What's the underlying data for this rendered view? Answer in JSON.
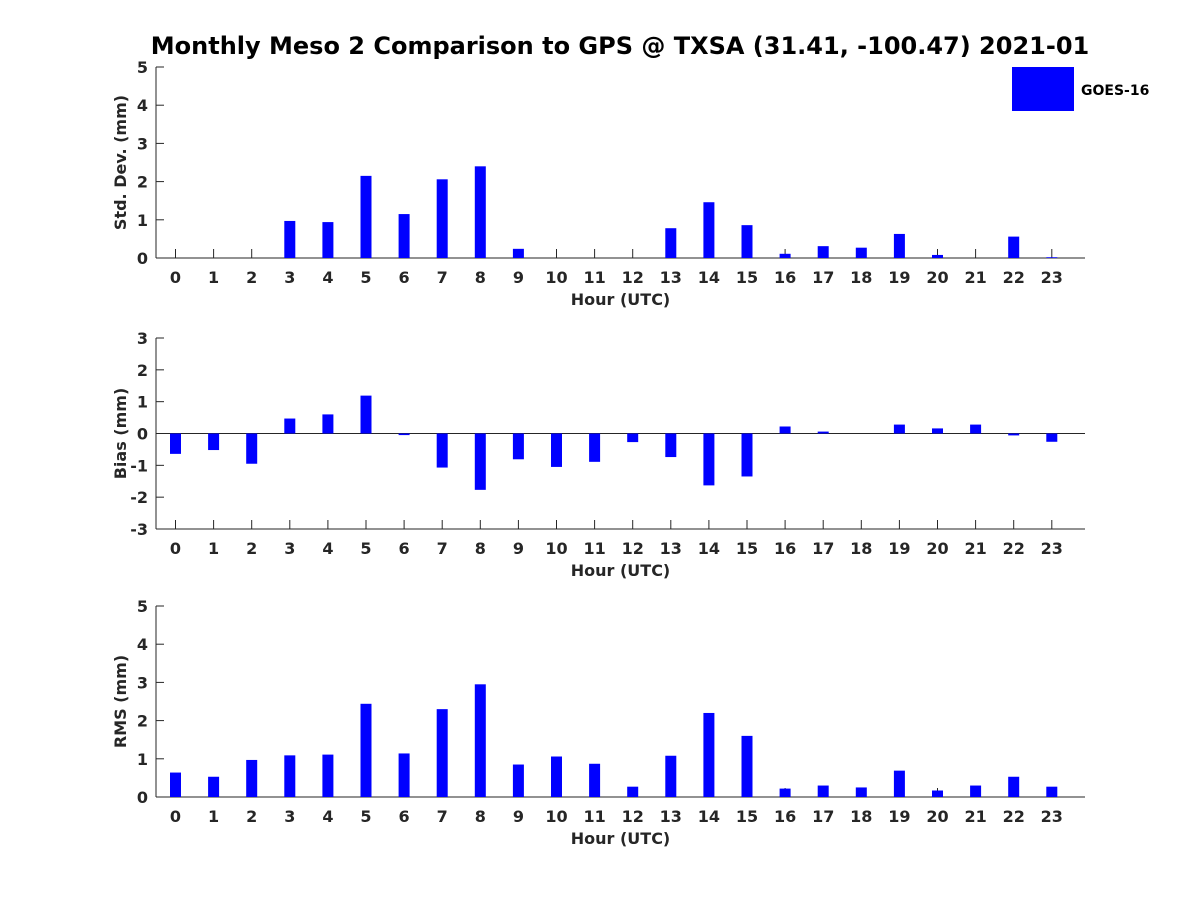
{
  "title": "Monthly Meso 2 Comparison to GPS @ TXSA (31.41, -100.47) 2021-01",
  "bar_color": "#0000ff",
  "legend": {
    "label": "GOES-16"
  },
  "chart_data": [
    {
      "type": "bar",
      "ylabel": "Std. Dev. (mm)",
      "xlabel": "Hour (UTC)",
      "ylim": [
        0,
        5
      ],
      "yticks": [
        "0",
        "1",
        "2",
        "3",
        "4",
        "5"
      ],
      "categories": [
        "0",
        "1",
        "2",
        "3",
        "4",
        "5",
        "6",
        "7",
        "8",
        "9",
        "10",
        "11",
        "12",
        "13",
        "14",
        "15",
        "16",
        "17",
        "18",
        "19",
        "20",
        "21",
        "22",
        "23"
      ],
      "series": [
        {
          "name": "GOES-16",
          "values": [
            0,
            0,
            0,
            0.97,
            0.94,
            2.15,
            1.15,
            2.06,
            2.4,
            0.24,
            0,
            0,
            0,
            0.78,
            1.46,
            0.86,
            0.11,
            0.31,
            0.27,
            0.63,
            0.08,
            0,
            0.56,
            0.02
          ]
        }
      ]
    },
    {
      "type": "bar",
      "ylabel": "Bias (mm)",
      "xlabel": "Hour (UTC)",
      "ylim": [
        -3,
        3
      ],
      "yticks": [
        "-3",
        "-2",
        "-1",
        "0",
        "1",
        "2",
        "3"
      ],
      "categories": [
        "0",
        "1",
        "2",
        "3",
        "4",
        "5",
        "6",
        "7",
        "8",
        "9",
        "10",
        "11",
        "12",
        "13",
        "14",
        "15",
        "16",
        "17",
        "18",
        "19",
        "20",
        "21",
        "22",
        "23"
      ],
      "series": [
        {
          "name": "GOES-16",
          "values": [
            -0.64,
            -0.52,
            -0.95,
            0.47,
            0.6,
            1.19,
            -0.05,
            -1.07,
            -1.77,
            -0.81,
            -1.05,
            -0.89,
            -0.27,
            -0.74,
            -1.63,
            -1.35,
            0.22,
            0.06,
            0,
            0.28,
            0.16,
            0.28,
            -0.06,
            -0.26
          ]
        }
      ]
    },
    {
      "type": "bar",
      "ylabel": "RMS (mm)",
      "xlabel": "Hour (UTC)",
      "ylim": [
        0,
        5
      ],
      "yticks": [
        "0",
        "1",
        "2",
        "3",
        "4",
        "5"
      ],
      "categories": [
        "0",
        "1",
        "2",
        "3",
        "4",
        "5",
        "6",
        "7",
        "8",
        "9",
        "10",
        "11",
        "12",
        "13",
        "14",
        "15",
        "16",
        "17",
        "18",
        "19",
        "20",
        "21",
        "22",
        "23"
      ],
      "series": [
        {
          "name": "GOES-16",
          "values": [
            0.64,
            0.53,
            0.97,
            1.09,
            1.11,
            2.44,
            1.14,
            2.3,
            2.95,
            0.85,
            1.06,
            0.87,
            0.27,
            1.08,
            2.2,
            1.6,
            0.22,
            0.3,
            0.25,
            0.69,
            0.17,
            0.3,
            0.53,
            0.27
          ]
        }
      ]
    }
  ]
}
